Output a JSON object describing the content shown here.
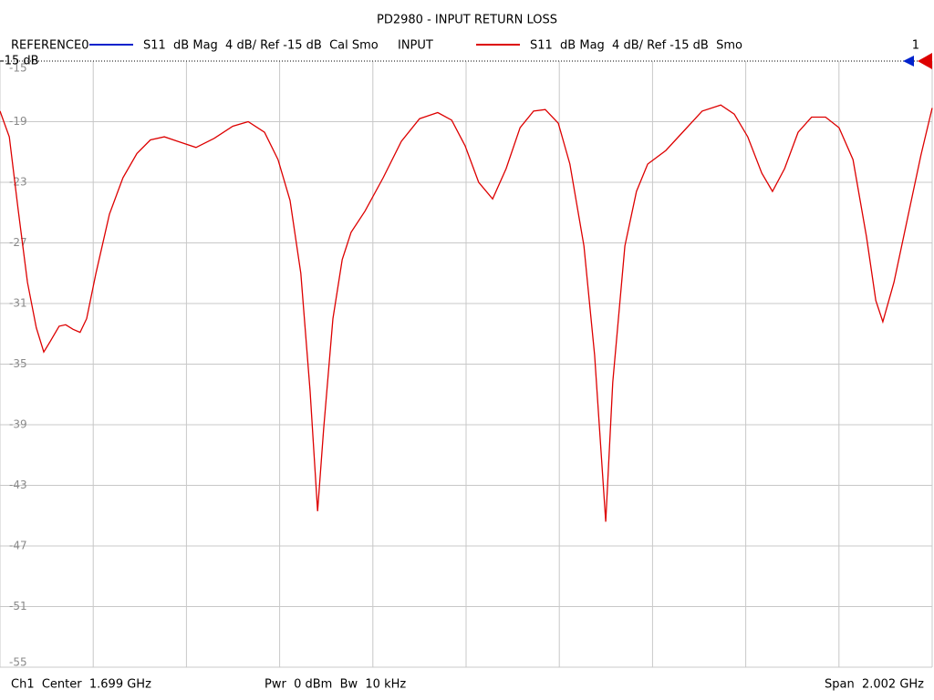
{
  "chart_data": {
    "type": "line",
    "title": "PD2980 - INPUT RETURN LOSS",
    "legend": [
      {
        "trace": "REFERENCE0",
        "color": "#0022cc",
        "label": "S11  dB Mag  4 dB/ Ref -15 dB  Cal Smo"
      },
      {
        "trace": "INPUT",
        "color": "#dd0000",
        "label": "S11  dB Mag  4 dB/ Ref -15 dB  Smo"
      }
    ],
    "channel_number": "1",
    "ref_label": "-15 dB",
    "footer": {
      "left": "Ch1  Center  1.699 GHz",
      "middle": "Pwr  0 dBm  Bw  10 kHz",
      "right": "Span  2.002 GHz"
    },
    "xlim": [
      0.698,
      2.7
    ],
    "ylim": [
      -55,
      -15
    ],
    "yticks": [
      -15,
      -19,
      -23,
      -27,
      -31,
      -35,
      -39,
      -43,
      -47,
      -51,
      -55
    ],
    "grid": true,
    "x": [
      0.698,
      0.718,
      0.737,
      0.757,
      0.776,
      0.792,
      0.806,
      0.825,
      0.839,
      0.855,
      0.87,
      0.884,
      0.904,
      0.933,
      0.962,
      0.992,
      1.021,
      1.051,
      1.08,
      1.119,
      1.158,
      1.198,
      1.231,
      1.266,
      1.295,
      1.321,
      1.344,
      1.364,
      1.38,
      1.393,
      1.413,
      1.433,
      1.452,
      1.482,
      1.521,
      1.56,
      1.599,
      1.638,
      1.668,
      1.697,
      1.726,
      1.756,
      1.785,
      1.815,
      1.844,
      1.869,
      1.897,
      1.922,
      1.952,
      1.975,
      1.999,
      2.014,
      2.04,
      2.065,
      2.089,
      2.128,
      2.167,
      2.206,
      2.246,
      2.275,
      2.304,
      2.334,
      2.357,
      2.383,
      2.412,
      2.441,
      2.471,
      2.5,
      2.53,
      2.559,
      2.579,
      2.594,
      2.618,
      2.647,
      2.676,
      2.7
    ],
    "series": [
      {
        "name": "INPUT",
        "color": "#dd0000",
        "values": [
          -18.3,
          -20.0,
          -24.8,
          -29.6,
          -32.6,
          -34.2,
          -33.5,
          -32.5,
          -32.4,
          -32.7,
          -32.9,
          -32.0,
          -29.0,
          -25.1,
          -22.7,
          -21.1,
          -20.2,
          -20.0,
          -20.3,
          -20.7,
          -20.1,
          -19.3,
          -19.0,
          -19.7,
          -21.5,
          -24.2,
          -29.0,
          -36.8,
          -44.7,
          -39.3,
          -32.0,
          -28.1,
          -26.3,
          -24.9,
          -22.7,
          -20.3,
          -18.8,
          -18.4,
          -18.9,
          -20.6,
          -23.0,
          -24.1,
          -22.1,
          -19.4,
          -18.3,
          -18.2,
          -19.1,
          -21.8,
          -27.2,
          -34.4,
          -45.4,
          -36.2,
          -27.2,
          -23.6,
          -21.8,
          -20.9,
          -19.6,
          -18.3,
          -17.9,
          -18.5,
          -20.0,
          -22.4,
          -23.6,
          -22.1,
          -19.7,
          -18.7,
          -18.7,
          -19.4,
          -21.5,
          -26.6,
          -30.8,
          -32.2,
          -29.6,
          -25.4,
          -21.2,
          -18.1
        ]
      }
    ]
  }
}
